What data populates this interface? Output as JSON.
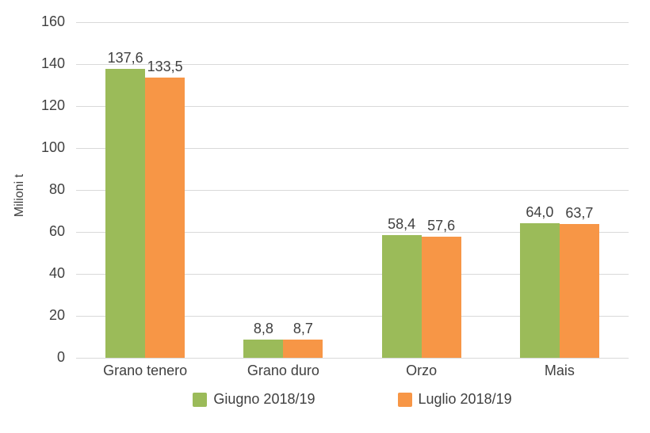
{
  "chart_data": {
    "type": "bar",
    "title": "",
    "xlabel": "",
    "ylabel": "Milioni t",
    "ylim": [
      0,
      160
    ],
    "yticks": [
      0,
      20,
      40,
      60,
      80,
      100,
      120,
      140,
      160
    ],
    "categories": [
      "Grano tenero",
      "Grano duro",
      "Orzo",
      "Mais"
    ],
    "series": [
      {
        "name": "Giugno 2018/19",
        "color": "#9BBB59",
        "values": [
          137.6,
          8.8,
          58.4,
          64.0
        ],
        "labels": [
          "137,6",
          "8,8",
          "58,4",
          "64,0"
        ]
      },
      {
        "name": "Luglio 2018/19",
        "color": "#F79646",
        "values": [
          133.5,
          8.7,
          57.6,
          63.7
        ],
        "labels": [
          "133,5",
          "8,7",
          "57,6",
          "63,7"
        ]
      }
    ],
    "grid": true,
    "legend_position": "bottom",
    "decimal_separator": ","
  },
  "colors": {
    "grid": "#D9D9D9",
    "axis_line": "#D9D9D9",
    "text": "#404040",
    "background": "#FFFFFF"
  }
}
